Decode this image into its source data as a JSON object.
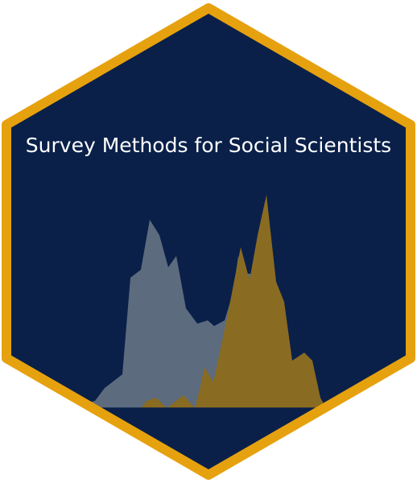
{
  "sticker": {
    "title": "Survey Methods for Social Scientists"
  },
  "colors": {
    "background": "#0a2049",
    "border": "#e6a10f",
    "grey_density": "#5c6b7e",
    "gold_density": "#8a6b22"
  }
}
